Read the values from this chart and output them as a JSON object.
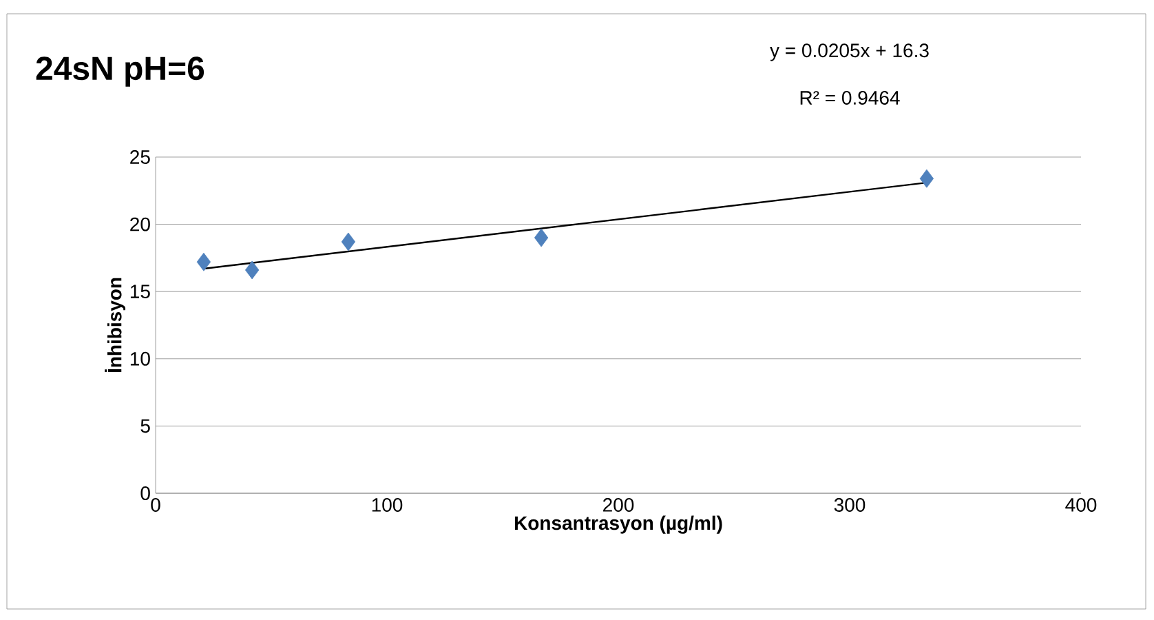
{
  "chart_data": {
    "type": "scatter",
    "title": "24sN pH=6",
    "xlabel": "Konsantrasyon (µg/ml)",
    "ylabel": "İnhibisyon",
    "annotations": [
      "y = 0.0205x + 16.3",
      "R² = 0.9464"
    ],
    "series": [
      {
        "color": "#4f81bd",
        "marker": "diamond",
        "x": [
          20.8,
          41.7,
          83.3,
          166.7,
          333.3
        ],
        "values": [
          17.2,
          16.6,
          18.7,
          19.0,
          23.4
        ]
      },
      {
        "type": "line",
        "marker": "none",
        "color": "#000000",
        "x": [
          20.8,
          333.3
        ],
        "values": [
          16.7,
          23.1
        ]
      }
    ],
    "xlim": [
      0,
      400
    ],
    "xticks": [
      0,
      100,
      200,
      300,
      400
    ],
    "ylim": [
      0,
      25
    ],
    "yticks": [
      0,
      5,
      10,
      15,
      20,
      25
    ],
    "grid": "y"
  }
}
